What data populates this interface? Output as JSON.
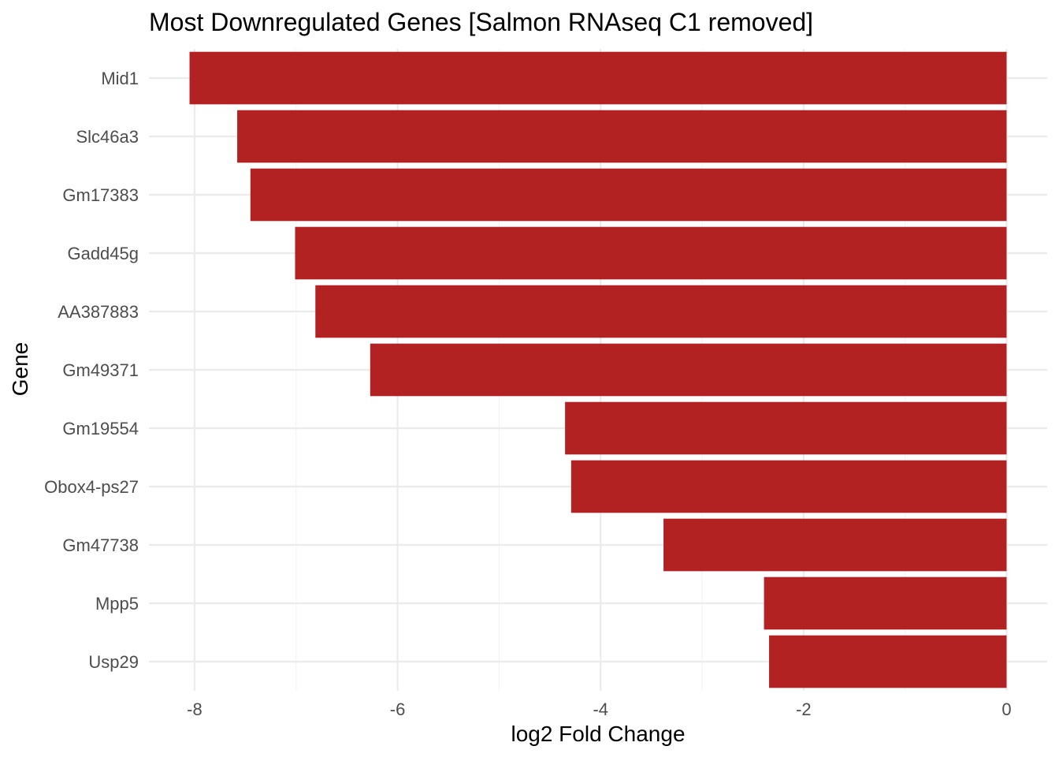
{
  "chart_data": {
    "type": "bar",
    "orientation": "horizontal",
    "title": "Most Downregulated Genes [Salmon RNAseq C1 removed]",
    "xlabel": "log2 Fold Change",
    "ylabel": "Gene",
    "categories": [
      "Mid1",
      "Slc46a3",
      "Gm17383",
      "Gadd45g",
      "AA387883",
      "Gm49371",
      "Gm19554",
      "Obox4-ps27",
      "Gm47738",
      "Mpp5",
      "Usp29"
    ],
    "values": [
      -8.05,
      -7.58,
      -7.45,
      -7.01,
      -6.81,
      -6.27,
      -4.35,
      -4.29,
      -3.38,
      -2.39,
      -2.34
    ],
    "xlim": [
      -8.45,
      0.4
    ],
    "xticks": [
      -8,
      -6,
      -4,
      -2,
      0
    ],
    "xtick_labels": [
      "-8",
      "-6",
      "-4",
      "-2",
      "0"
    ],
    "grid": true,
    "colors": {
      "bar": "#B22222",
      "grid_major": "#EBEBEB",
      "grid_minor": "#F4F4F4",
      "tick_text": "#4D4D4D",
      "text": "#000000"
    }
  }
}
